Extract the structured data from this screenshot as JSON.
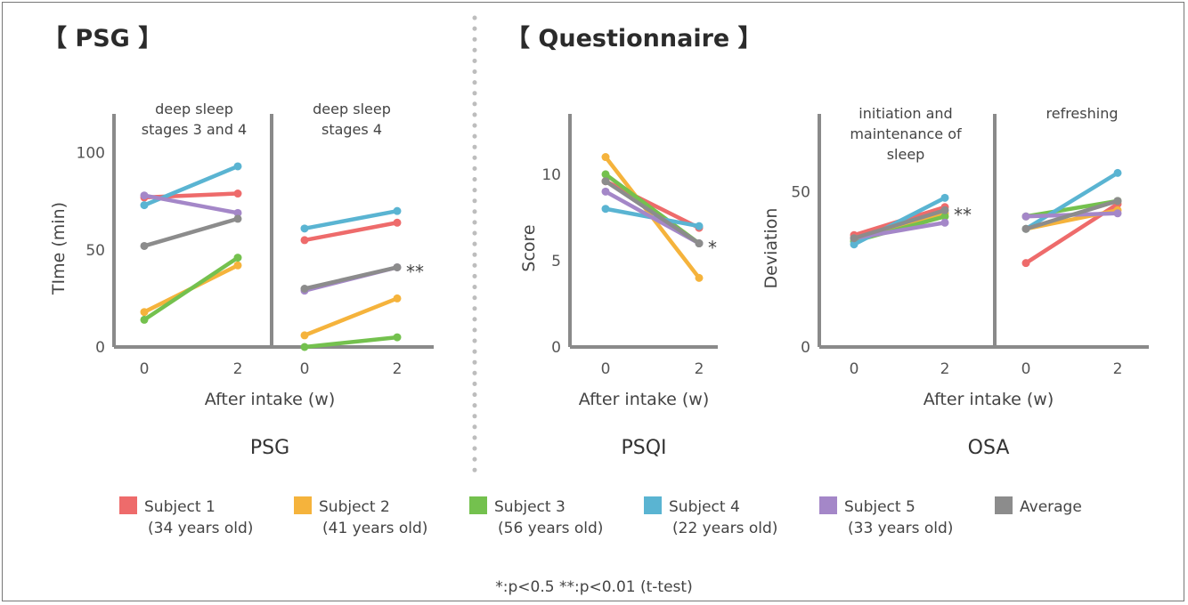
{
  "sections": {
    "psg_title": "【 PSG 】",
    "questionnaire_title": "【 Questionnaire 】"
  },
  "colors": {
    "subject1": "#ee6b6b",
    "subject2": "#f5b33c",
    "subject3": "#74c14e",
    "subject4": "#5ab4d2",
    "subject5": "#a487c8",
    "average": "#8c8c8c"
  },
  "legend": [
    {
      "key": "subject1",
      "name": "Subject 1",
      "note": "(34 years old)"
    },
    {
      "key": "subject2",
      "name": "Subject 2",
      "note": "(41 years old)"
    },
    {
      "key": "subject3",
      "name": "Subject 3",
      "note": "(56 years old)"
    },
    {
      "key": "subject4",
      "name": "Subject 4",
      "note": "(22 years old)"
    },
    {
      "key": "subject5",
      "name": "Subject 5",
      "note": "(33 years old)"
    },
    {
      "key": "average",
      "name": "Average",
      "note": ""
    }
  ],
  "footnote": "*:p<0.5 **:p<0.01 (t-test)",
  "chart_data": [
    {
      "type": "line",
      "title": "PSG",
      "xlabel": "After intake (w)",
      "ylabel": "TIme (min)",
      "ylim": [
        0,
        120
      ],
      "yticks": [
        "0",
        "50",
        "100"
      ],
      "panels": [
        {
          "label": [
            "deep sleep",
            "stages 3 and 4"
          ],
          "x": [
            "0",
            "2"
          ],
          "significance": "",
          "series": [
            {
              "key": "subject1",
              "values": [
                77,
                79
              ]
            },
            {
              "key": "subject2",
              "values": [
                18,
                42
              ]
            },
            {
              "key": "subject3",
              "values": [
                14,
                46
              ]
            },
            {
              "key": "subject4",
              "values": [
                73,
                93
              ]
            },
            {
              "key": "subject5",
              "values": [
                78,
                69
              ]
            },
            {
              "key": "average",
              "values": [
                52,
                66
              ]
            }
          ]
        },
        {
          "label": [
            "deep sleep",
            "stages  4"
          ],
          "x": [
            "0",
            "2"
          ],
          "significance": "**",
          "series": [
            {
              "key": "subject1",
              "values": [
                55,
                64
              ]
            },
            {
              "key": "subject2",
              "values": [
                6,
                25
              ]
            },
            {
              "key": "subject3",
              "values": [
                0,
                5
              ]
            },
            {
              "key": "subject4",
              "values": [
                61,
                70
              ]
            },
            {
              "key": "subject5",
              "values": [
                29,
                41
              ]
            },
            {
              "key": "average",
              "values": [
                30,
                41
              ]
            }
          ]
        }
      ]
    },
    {
      "type": "line",
      "title": "PSQI",
      "xlabel": "After intake (w)",
      "ylabel": "Score",
      "ylim": [
        0,
        13.5
      ],
      "yticks": [
        "0",
        "5",
        "10"
      ],
      "panels": [
        {
          "label": [],
          "x": [
            "0",
            "2"
          ],
          "significance": "*",
          "series": [
            {
              "key": "subject1",
              "values": [
                9.6,
                6.9
              ]
            },
            {
              "key": "subject2",
              "values": [
                11.0,
                4.0
              ]
            },
            {
              "key": "subject3",
              "values": [
                10.0,
                6.0
              ]
            },
            {
              "key": "subject4",
              "values": [
                8.0,
                7.0
              ]
            },
            {
              "key": "subject5",
              "values": [
                9.0,
                6.0
              ]
            },
            {
              "key": "average",
              "values": [
                9.6,
                6.0
              ]
            }
          ]
        }
      ]
    },
    {
      "type": "line",
      "title": "OSA",
      "xlabel": "After intake (w)",
      "ylabel": "Deviation",
      "ylim": [
        0,
        75
      ],
      "yticks": [
        "0",
        "50"
      ],
      "panels": [
        {
          "label": [
            "initiation and",
            "maintenance of",
            "sleep"
          ],
          "x": [
            "0",
            "2"
          ],
          "significance": "**",
          "series": [
            {
              "key": "subject1",
              "values": [
                36,
                45
              ]
            },
            {
              "key": "subject2",
              "values": [
                35,
                43
              ]
            },
            {
              "key": "subject3",
              "values": [
                34,
                42
              ]
            },
            {
              "key": "subject4",
              "values": [
                33,
                48
              ]
            },
            {
              "key": "subject5",
              "values": [
                35,
                40
              ]
            },
            {
              "key": "average",
              "values": [
                35,
                44
              ]
            }
          ]
        },
        {
          "label": [
            "refreshing"
          ],
          "x": [
            "0",
            "2"
          ],
          "significance": "",
          "series": [
            {
              "key": "subject1",
              "values": [
                27,
                46
              ]
            },
            {
              "key": "subject2",
              "values": [
                38,
                44
              ]
            },
            {
              "key": "subject3",
              "values": [
                42,
                47
              ]
            },
            {
              "key": "subject4",
              "values": [
                38,
                56
              ]
            },
            {
              "key": "subject5",
              "values": [
                42,
                43
              ]
            },
            {
              "key": "average",
              "values": [
                38,
                47
              ]
            }
          ]
        }
      ]
    }
  ]
}
